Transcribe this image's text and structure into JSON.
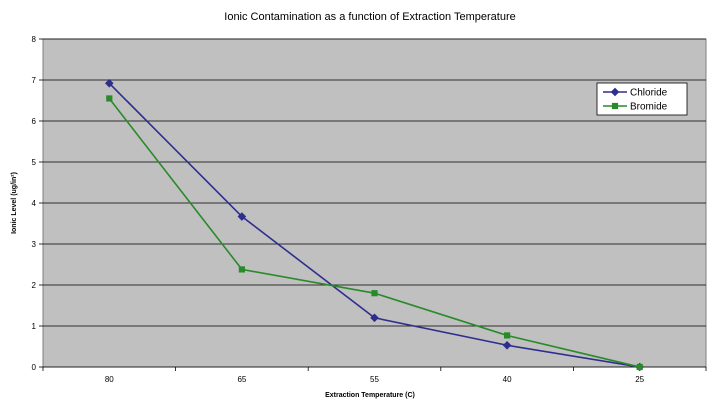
{
  "chart_data": {
    "type": "line",
    "title": "Ionic Contamination as a function of Extraction Temperature",
    "xlabel": "Extraction Temperature (C)",
    "ylabel": "Ionic Level (ug/in²)",
    "categories": [
      "80",
      "65",
      "55",
      "40",
      "25"
    ],
    "ylim": [
      0,
      8
    ],
    "yticks": [
      "0",
      "1",
      "2",
      "3",
      "4",
      "5",
      "6",
      "7",
      "8"
    ],
    "grid": true,
    "legend_position": "top-right",
    "plot_background": "#c0c0c0",
    "series": [
      {
        "name": "Chloride",
        "color": "#2e2e8f",
        "marker": "diamond",
        "values": [
          6.92,
          3.67,
          1.2,
          0.53,
          0.0
        ]
      },
      {
        "name": "Bromide",
        "color": "#2a8a2a",
        "marker": "square",
        "values": [
          6.55,
          2.38,
          1.8,
          0.77,
          0.0
        ]
      }
    ]
  }
}
